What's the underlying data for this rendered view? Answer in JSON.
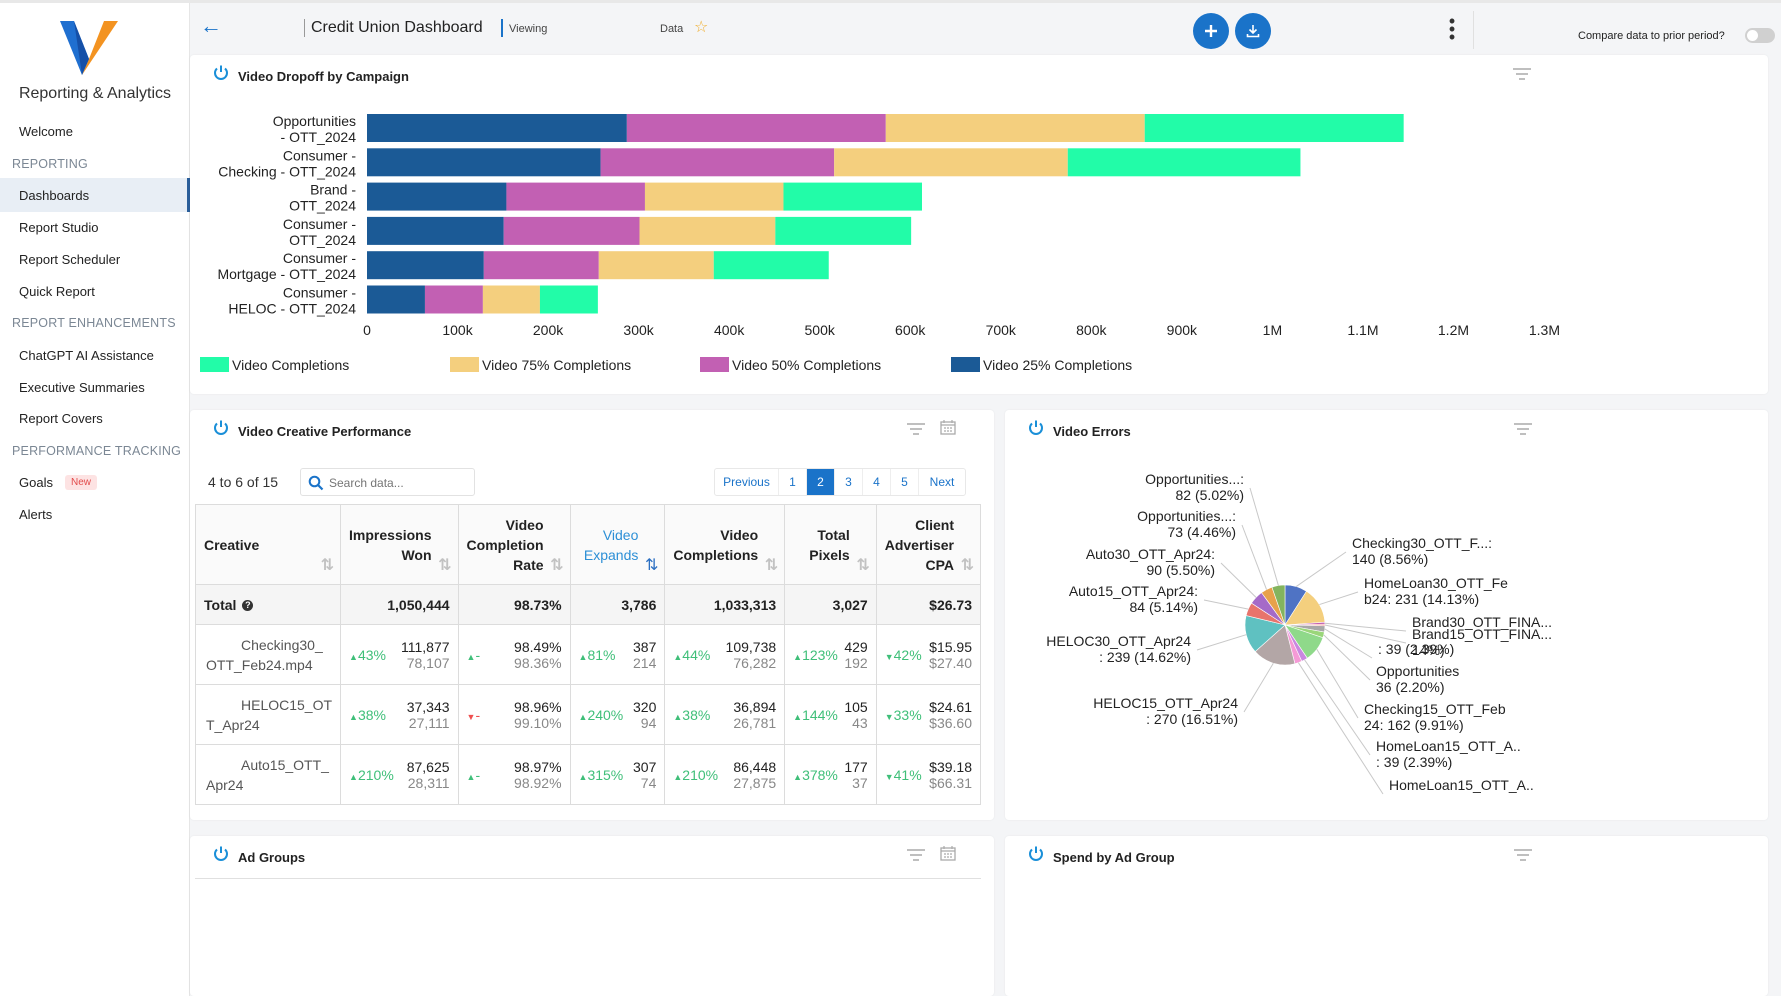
{
  "sidebar": {
    "brand": "Reporting & Analytics",
    "welcome": "Welcome",
    "sections": {
      "reporting": "REPORTING",
      "enhancements": "REPORT ENHANCEMENTS",
      "performance": "PERFORMANCE TRACKING"
    },
    "items": {
      "dashboards": "Dashboards",
      "report_studio": "Report Studio",
      "report_scheduler": "Report Scheduler",
      "quick_report": "Quick Report",
      "chatgpt": "ChatGPT AI Assistance",
      "exec_summaries": "Executive Summaries",
      "report_covers": "Report Covers",
      "goals": "Goals",
      "alerts": "Alerts"
    },
    "new_badge": "New"
  },
  "header": {
    "title": "Credit Union Dashboard",
    "viewing": "Viewing",
    "data": "Data",
    "compare": "Compare data to prior period?"
  },
  "colors": {
    "accent": "#1a73c9",
    "video_25": "#1b5a96",
    "video_50": "#c260b3",
    "video_75": "#f4cf7e",
    "video_completions": "#22fca8"
  },
  "dropoff": {
    "title": "Video Dropoff by Campaign"
  },
  "chart_data": {
    "type": "bar",
    "orientation": "horizontal",
    "stacked": true,
    "title": "Video Dropoff by Campaign",
    "categories": [
      [
        "Opportunities",
        "- OTT_2024"
      ],
      [
        "Consumer -",
        "Checking - OTT_2024"
      ],
      [
        "Brand -",
        "OTT_2024"
      ],
      [
        "Consumer -",
        "OTT_2024"
      ],
      [
        "Consumer -",
        "Mortgage - OTT_2024"
      ],
      [
        "Consumer -",
        "HELOC - OTT_2024"
      ]
    ],
    "series": [
      {
        "name": "Video 25% Completions",
        "color": "#1b5a96",
        "values": [
          287000,
          258000,
          154000,
          151000,
          129000,
          64000
        ]
      },
      {
        "name": "Video 50% Completions",
        "color": "#c260b3",
        "values": [
          286000,
          258000,
          153000,
          150000,
          127000,
          64000
        ]
      },
      {
        "name": "Video 75% Completions",
        "color": "#f4cf7e",
        "values": [
          286000,
          258000,
          153000,
          150000,
          127000,
          63000
        ]
      },
      {
        "name": "Video Completions",
        "color": "#22fca8",
        "values": [
          286000,
          257000,
          153000,
          150000,
          127000,
          64000
        ]
      }
    ],
    "xlim": [
      0,
      1300000
    ],
    "xticks": [
      "0",
      "100k",
      "200k",
      "300k",
      "400k",
      "500k",
      "600k",
      "700k",
      "800k",
      "900k",
      "1M",
      "1.1M",
      "1.2M",
      "1.3M"
    ],
    "legend": [
      "Video Completions",
      "Video 75% Completions",
      "Video 50% Completions",
      "Video 25% Completions"
    ],
    "legend_position": "bottom",
    "pie": {
      "type": "pie",
      "title": "Video Errors",
      "slices": [
        {
          "label": "Checking30_OTT_F...:",
          "sub": "140 (8.56%)",
          "value": 140,
          "color": "#4f73c4"
        },
        {
          "label": "HomeLoan30_OTT_Fe",
          "sub": "b24: 231 (14.13%)",
          "value": 231,
          "color": "#f4cf7e"
        },
        {
          "label": "Brand30_OTT_FINA...",
          "sub": "",
          "value": 12,
          "color": "#c260b3"
        },
        {
          "label": "Brand15_OTT_FINA...",
          "sub": "14%)",
          "value": 10,
          "color": "#f08080"
        },
        {
          "label": "",
          "sub": ": 39 (2.39%)",
          "value": 39,
          "color": "#a8a8a8"
        },
        {
          "label": "Opportunities",
          "sub": "36 (2.20%)",
          "value": 36,
          "color": "#9ad67a"
        },
        {
          "label": "Checking15_OTT_Feb",
          "sub": "24: 162 (9.91%)",
          "value": 162,
          "color": "#8fd98a"
        },
        {
          "label": "HomeLoan15_OTT_A..",
          "sub": ": 39 (2.39%)",
          "value": 39,
          "color": "#c987e0"
        },
        {
          "label": "HomeLoan15_OTT_A..",
          "sub": "",
          "value": 45,
          "color": "#f59ad6"
        },
        {
          "label": "HELOC15_OTT_Apr24",
          "sub": ": 270 (16.51%)",
          "value": 270,
          "color": "#b3a6a6"
        },
        {
          "label": "HELOC30_OTT_Apr24",
          "sub": ": 239 (14.62%)",
          "value": 239,
          "color": "#5fc1c1"
        },
        {
          "label": "Auto15_OTT_Apr24:",
          "sub": "84 (5.14%)",
          "value": 84,
          "color": "#e8746c"
        },
        {
          "label": "Auto30_OTT_Apr24:",
          "sub": "90 (5.50%)",
          "value": 90,
          "color": "#a56ac8"
        },
        {
          "label": "Opportunities...:",
          "sub": "73 (4.46%)",
          "value": 73,
          "color": "#e7a14b"
        },
        {
          "label": "Opportunities...:",
          "sub": "82 (5.02%)",
          "value": 82,
          "color": "#83b45e"
        }
      ]
    }
  },
  "creative": {
    "title": "Video Creative Performance",
    "range": "4 to 6 of 15",
    "search_placeholder": "Search data...",
    "pager": {
      "prev": "Previous",
      "p1": "1",
      "p2": "2",
      "p3": "3",
      "p4": "4",
      "p5": "5",
      "next": "Next"
    },
    "columns": {
      "creative": "Creative",
      "impressions": [
        "Impressions",
        "Won"
      ],
      "vcr": [
        "Video",
        "Completion",
        "Rate"
      ],
      "expands": [
        "Video",
        "Expands"
      ],
      "completions": [
        "Video",
        "Completions"
      ],
      "pixels": [
        "Total",
        "Pixels"
      ],
      "cpa": [
        "Client",
        "Advertiser",
        "CPA"
      ]
    },
    "total": {
      "label": "Total",
      "impressions": "1,050,444",
      "vcr": "98.73%",
      "expands": "3,786",
      "completions": "1,033,313",
      "pixels": "3,027",
      "cpa": "$26.73"
    },
    "rows": [
      {
        "name": [
          "Checking30_",
          "OTT_Feb24.mp4"
        ],
        "impressions": {
          "val": "111,877",
          "prev": "78,107",
          "delta": "43%",
          "dir": "up"
        },
        "vcr": {
          "val": "98.49%",
          "prev": "98.36%",
          "delta": "-",
          "dir": "up"
        },
        "expands": {
          "val": "387",
          "prev": "214",
          "delta": "81%",
          "dir": "up"
        },
        "completions": {
          "val": "109,738",
          "prev": "76,282",
          "delta": "44%",
          "dir": "up"
        },
        "pixels": {
          "val": "429",
          "prev": "192",
          "delta": "123%",
          "dir": "up"
        },
        "cpa": {
          "val": "$15.95",
          "prev": "$27.40",
          "delta": "42%",
          "dir": "down-good"
        }
      },
      {
        "name": [
          "HELOC15_OT",
          "T_Apr24"
        ],
        "impressions": {
          "val": "37,343",
          "prev": "27,111",
          "delta": "38%",
          "dir": "up"
        },
        "vcr": {
          "val": "98.96%",
          "prev": "99.10%",
          "delta": "-",
          "dir": "down"
        },
        "expands": {
          "val": "320",
          "prev": "94",
          "delta": "240%",
          "dir": "up"
        },
        "completions": {
          "val": "36,894",
          "prev": "26,781",
          "delta": "38%",
          "dir": "up"
        },
        "pixels": {
          "val": "105",
          "prev": "43",
          "delta": "144%",
          "dir": "up"
        },
        "cpa": {
          "val": "$24.61",
          "prev": "$36.60",
          "delta": "33%",
          "dir": "down-good"
        }
      },
      {
        "name": [
          "Auto15_OTT_",
          "Apr24"
        ],
        "impressions": {
          "val": "87,625",
          "prev": "28,311",
          "delta": "210%",
          "dir": "up"
        },
        "vcr": {
          "val": "98.97%",
          "prev": "98.92%",
          "delta": "-",
          "dir": "up"
        },
        "expands": {
          "val": "307",
          "prev": "74",
          "delta": "315%",
          "dir": "up"
        },
        "completions": {
          "val": "86,448",
          "prev": "27,875",
          "delta": "210%",
          "dir": "up"
        },
        "pixels": {
          "val": "177",
          "prev": "37",
          "delta": "378%",
          "dir": "up"
        },
        "cpa": {
          "val": "$39.18",
          "prev": "$66.31",
          "delta": "41%",
          "dir": "down-good"
        }
      }
    ]
  },
  "errors": {
    "title": "Video Errors"
  },
  "adgroups": {
    "title": "Ad Groups"
  },
  "spend": {
    "title": "Spend by Ad Group"
  }
}
